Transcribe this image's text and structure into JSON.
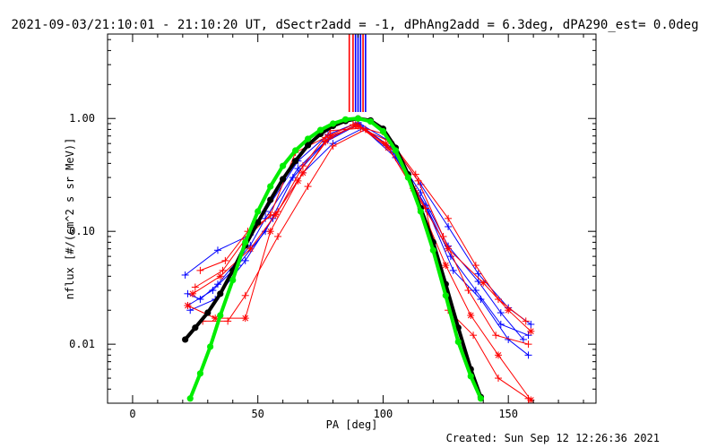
{
  "chart_data": {
    "type": "line",
    "title": "2021-09-03/21:10:01 - 21:10:20 UT, dSectr2add = -1, dPhAng2add = 6.3deg, dPA290_est=  0.0deg",
    "xlabel": "PA [deg]",
    "ylabel": "nflux [#/(cm^2 s sr MeV)]",
    "xlim": [
      -10,
      185
    ],
    "ylim": [
      0.003,
      5.6
    ],
    "yscale": "log",
    "xticks": [
      0,
      50,
      100,
      150
    ],
    "xtick_labels": [
      "0",
      "50",
      "100",
      "150"
    ],
    "yticks": [
      0.01,
      0.1,
      1.0
    ],
    "ytick_labels": [
      "0.01",
      "0.10",
      "1.00"
    ],
    "grid": false,
    "footer": "Created: Sun Sep 12 12:26:36 2021",
    "markers": [
      {
        "x": 86.5,
        "color": "#ff0000"
      },
      {
        "x": 88.0,
        "color": "#ff0000"
      },
      {
        "x": 89.0,
        "color": "#0000ff"
      },
      {
        "x": 90.0,
        "color": "#0000ff"
      },
      {
        "x": 91.0,
        "color": "#0000ff"
      },
      {
        "x": 92.0,
        "color": "#ff0000"
      },
      {
        "x": 93.0,
        "color": "#0000ff"
      }
    ],
    "series": [
      {
        "color": "#0000ff",
        "marker": "+",
        "x": [
          21,
          34,
          47,
          53,
          66,
          78,
          90,
          103,
          115,
          126,
          138,
          150,
          159
        ],
        "y": [
          0.041,
          0.068,
          0.093,
          0.15,
          0.42,
          0.72,
          0.92,
          0.62,
          0.26,
          0.11,
          0.042,
          0.021,
          0.015
        ]
      },
      {
        "color": "#0000ff",
        "marker": "+",
        "x": [
          22,
          27,
          34,
          47,
          53,
          66,
          78,
          90,
          103,
          115,
          126,
          138,
          147,
          156
        ],
        "y": [
          0.028,
          0.025,
          0.034,
          0.075,
          0.13,
          0.36,
          0.66,
          0.9,
          0.56,
          0.22,
          0.074,
          0.036,
          0.019,
          0.011
        ]
      },
      {
        "color": "#0000ff",
        "marker": "+",
        "x": [
          22,
          32,
          42,
          53,
          64,
          77,
          90,
          104,
          117,
          127,
          137,
          147,
          158
        ],
        "y": [
          0.022,
          0.03,
          0.05,
          0.1,
          0.3,
          0.62,
          0.88,
          0.5,
          0.17,
          0.06,
          0.03,
          0.015,
          0.012
        ]
      },
      {
        "color": "#0000ff",
        "marker": "+",
        "x": [
          23,
          33,
          45,
          56,
          68,
          80,
          92,
          105,
          118,
          128,
          139,
          150,
          158
        ],
        "y": [
          0.02,
          0.025,
          0.055,
          0.13,
          0.33,
          0.6,
          0.82,
          0.45,
          0.15,
          0.045,
          0.025,
          0.011,
          0.008
        ]
      },
      {
        "color": "#ff0000",
        "marker": "+",
        "x": [
          25,
          36,
          45,
          55,
          65,
          77,
          88,
          101,
          113,
          126,
          137,
          146,
          157
        ],
        "y": [
          0.032,
          0.045,
          0.085,
          0.14,
          0.5,
          0.68,
          0.88,
          0.72,
          0.32,
          0.13,
          0.05,
          0.025,
          0.016
        ]
      },
      {
        "color": "#ff0000",
        "marker": "+",
        "x": [
          27,
          37,
          46,
          58,
          68,
          79,
          91,
          103,
          114,
          124,
          134,
          145,
          158
        ],
        "y": [
          0.045,
          0.055,
          0.1,
          0.15,
          0.38,
          0.78,
          0.82,
          0.62,
          0.28,
          0.09,
          0.03,
          0.012,
          0.01
        ]
      },
      {
        "color": "#ff0000",
        "marker": "*",
        "x": [
          22,
          33,
          45,
          55,
          66,
          77,
          89,
          101,
          112,
          125,
          135,
          146,
          159
        ],
        "y": [
          0.022,
          0.017,
          0.017,
          0.1,
          0.28,
          0.63,
          0.88,
          0.6,
          0.24,
          0.05,
          0.018,
          0.008,
          0.0032
        ]
      },
      {
        "color": "#ff0000",
        "marker": "+",
        "x": [
          28,
          38,
          45,
          58,
          70,
          80,
          93,
          105,
          117,
          126,
          136,
          146,
          158
        ],
        "y": [
          0.016,
          0.016,
          0.027,
          0.09,
          0.25,
          0.57,
          0.8,
          0.5,
          0.16,
          0.02,
          0.012,
          0.005,
          0.0033
        ]
      },
      {
        "color": "#ff0000",
        "marker": "*",
        "x": [
          24,
          35,
          47,
          57,
          68,
          79,
          90,
          102,
          113,
          126,
          140,
          150,
          159
        ],
        "y": [
          0.028,
          0.04,
          0.07,
          0.14,
          0.33,
          0.7,
          0.86,
          0.55,
          0.22,
          0.07,
          0.035,
          0.02,
          0.013
        ]
      },
      {
        "color": "#000000",
        "marker": "dot",
        "x": [
          21,
          25,
          30,
          35,
          40,
          45,
          50,
          55,
          60,
          65,
          70,
          75,
          80,
          85,
          90,
          95,
          100,
          105,
          110,
          115,
          120,
          125,
          130,
          135,
          139
        ],
        "y": [
          0.011,
          0.014,
          0.019,
          0.028,
          0.045,
          0.075,
          0.12,
          0.19,
          0.29,
          0.42,
          0.58,
          0.73,
          0.86,
          0.95,
          1.0,
          0.96,
          0.81,
          0.55,
          0.32,
          0.16,
          0.08,
          0.034,
          0.014,
          0.006,
          0.0034
        ]
      },
      {
        "color": "#00ee00",
        "marker": "dot",
        "x": [
          23,
          27,
          31,
          35,
          40,
          45,
          50,
          55,
          60,
          65,
          70,
          75,
          80,
          85,
          90,
          95,
          100,
          105,
          110,
          115,
          120,
          125,
          130,
          135,
          139
        ],
        "y": [
          0.0033,
          0.0055,
          0.0095,
          0.018,
          0.037,
          0.08,
          0.15,
          0.25,
          0.38,
          0.52,
          0.66,
          0.79,
          0.9,
          0.98,
          1.0,
          0.94,
          0.77,
          0.52,
          0.3,
          0.15,
          0.068,
          0.027,
          0.0105,
          0.0052,
          0.0033
        ]
      }
    ]
  }
}
